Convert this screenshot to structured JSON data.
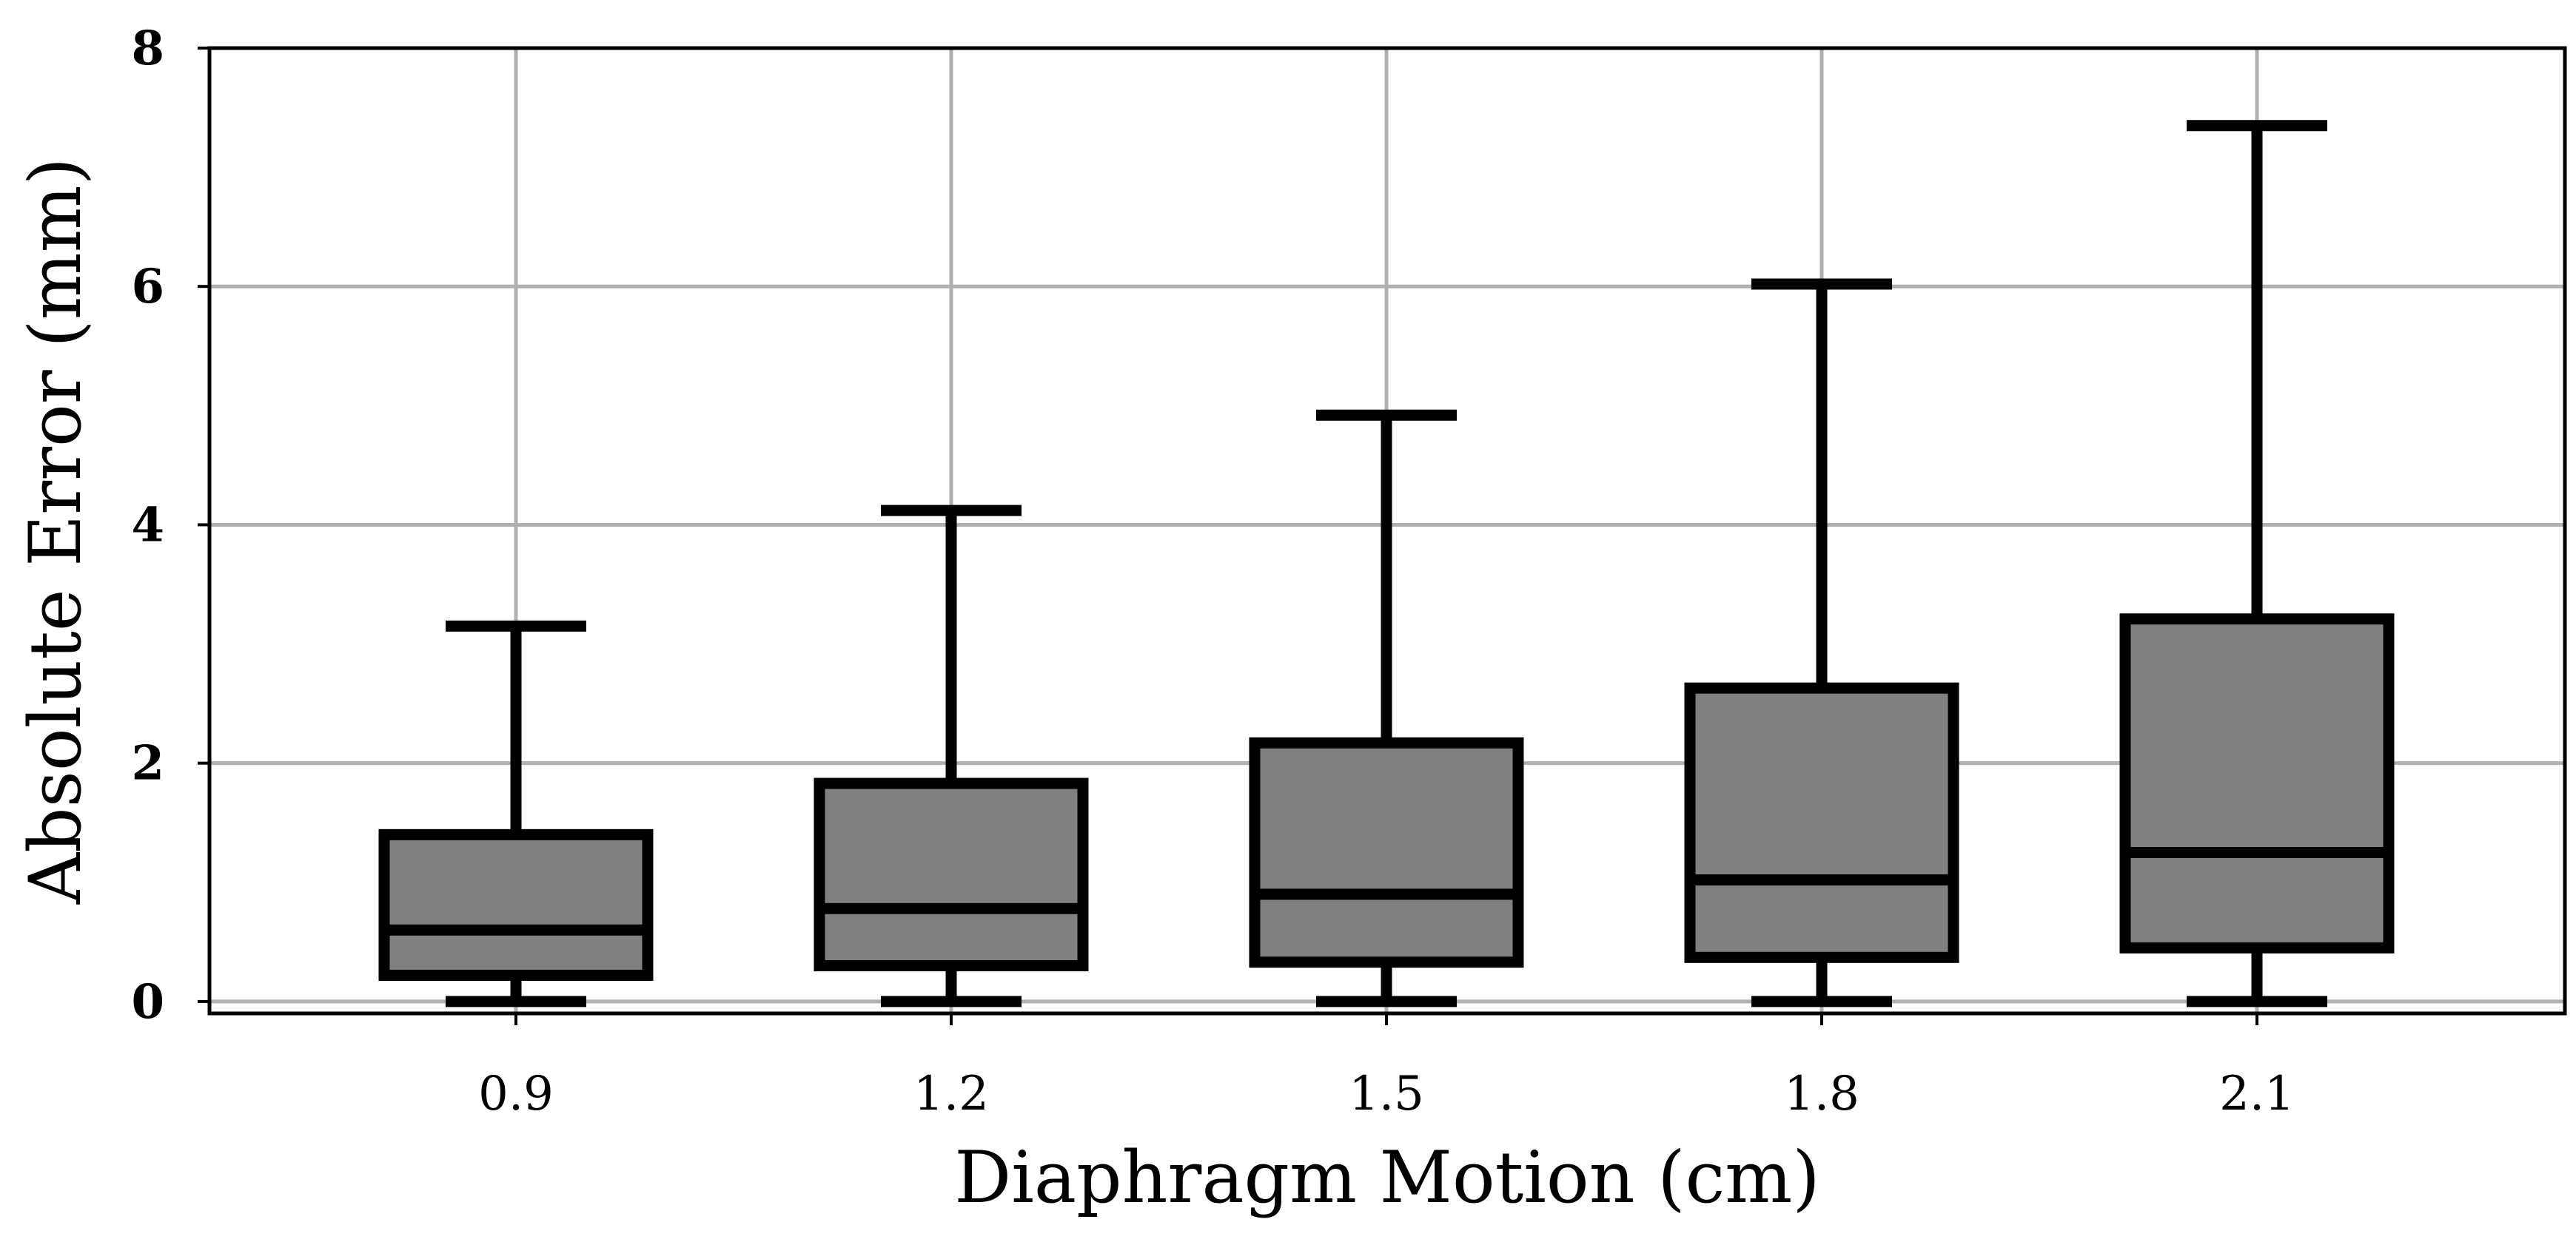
{
  "chart_data": {
    "type": "box",
    "title": "",
    "xlabel": "Diaphragm Motion (cm)",
    "ylabel": "Absolute Error (mm)",
    "categories": [
      "0.9",
      "1.2",
      "1.5",
      "1.8",
      "2.1"
    ],
    "ylim": [
      -0.1,
      8.0
    ],
    "yticks": [
      0,
      2,
      4,
      6,
      8
    ],
    "ytick_labels": [
      "0",
      "2",
      "4",
      "6",
      "8"
    ],
    "grid": true,
    "legend": "none",
    "boxes": [
      {
        "category": "0.9",
        "whisker_low": 0.0,
        "q1": 0.22,
        "median": 0.6,
        "q3": 1.4,
        "whisker_high": 3.15
      },
      {
        "category": "1.2",
        "whisker_low": 0.0,
        "q1": 0.3,
        "median": 0.78,
        "q3": 1.83,
        "whisker_high": 4.12
      },
      {
        "category": "1.5",
        "whisker_low": 0.0,
        "q1": 0.33,
        "median": 0.9,
        "q3": 2.17,
        "whisker_high": 4.92
      },
      {
        "category": "1.8",
        "whisker_low": 0.0,
        "q1": 0.37,
        "median": 1.02,
        "q3": 2.63,
        "whisker_high": 6.02
      },
      {
        "category": "2.1",
        "whisker_low": 0.0,
        "q1": 0.45,
        "median": 1.25,
        "q3": 3.21,
        "whisker_high": 7.35
      }
    ],
    "colors": {
      "box_fill": "#808080",
      "line": "#000000",
      "grid": "#b0b0b0",
      "background": "#ffffff"
    }
  }
}
